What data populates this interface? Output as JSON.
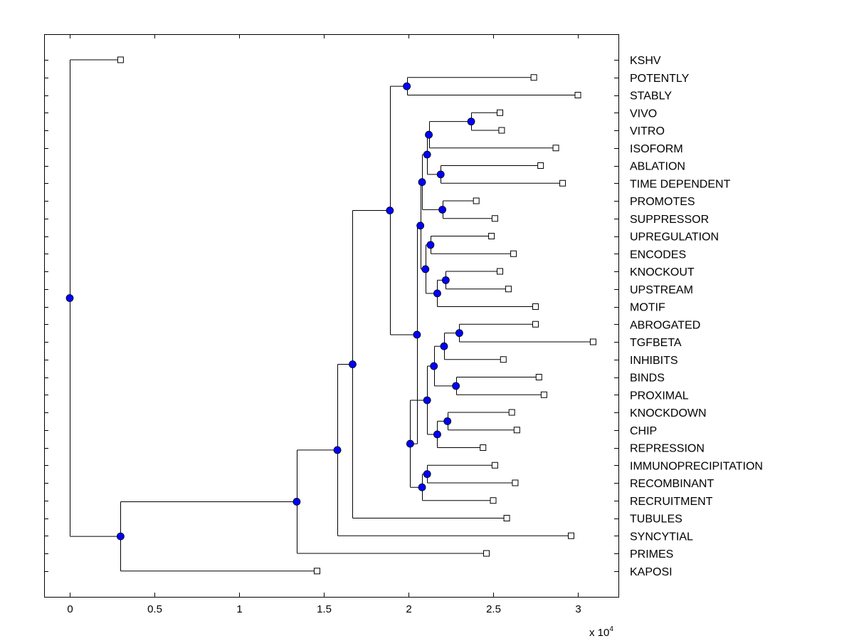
{
  "chart_data": {
    "type": "dendrogram",
    "title": "",
    "xlabel": "",
    "ylabel": "",
    "x_multiplier_label": {
      "base": "x 10",
      "exponent": "4"
    },
    "xlim": [
      -0.15,
      3.25
    ],
    "x_unit_scale": 10000,
    "xticks": [
      0,
      0.5,
      1,
      1.5,
      2,
      2.5,
      3
    ],
    "xtick_labels": [
      "0",
      "0.5",
      "1",
      "1.5",
      "2",
      "2.5",
      "3"
    ],
    "grid": false,
    "leaf_markers": "open-square",
    "node_marker_color": "#0000ff",
    "leaves": [
      {
        "label": "KSHV",
        "x": 0.3
      },
      {
        "label": "POTENTLY",
        "x": 2.74
      },
      {
        "label": "STABLY",
        "x": 3.0
      },
      {
        "label": "VIVO",
        "x": 2.54
      },
      {
        "label": "VITRO",
        "x": 2.55
      },
      {
        "label": "ISOFORM",
        "x": 2.87
      },
      {
        "label": "ABLATION",
        "x": 2.78
      },
      {
        "label": "TIME DEPENDENT",
        "x": 2.91
      },
      {
        "label": "PROMOTES",
        "x": 2.4
      },
      {
        "label": "SUPPRESSOR",
        "x": 2.51
      },
      {
        "label": "UPREGULATION",
        "x": 2.49
      },
      {
        "label": "ENCODES",
        "x": 2.62
      },
      {
        "label": "KNOCKOUT",
        "x": 2.54
      },
      {
        "label": "UPSTREAM",
        "x": 2.59
      },
      {
        "label": "MOTIF",
        "x": 2.75
      },
      {
        "label": "ABROGATED",
        "x": 2.75
      },
      {
        "label": "TGFBETA",
        "x": 3.09
      },
      {
        "label": "INHIBITS",
        "x": 2.56
      },
      {
        "label": "BINDS",
        "x": 2.77
      },
      {
        "label": "PROXIMAL",
        "x": 2.8
      },
      {
        "label": "KNOCKDOWN",
        "x": 2.61
      },
      {
        "label": "CHIP",
        "x": 2.64
      },
      {
        "label": "REPRESSION",
        "x": 2.44
      },
      {
        "label": "IMMUNOPRECIPITATION",
        "x": 2.51
      },
      {
        "label": "RECOMBINANT",
        "x": 2.63
      },
      {
        "label": "RECRUITMENT",
        "x": 2.5
      },
      {
        "label": "TUBULES",
        "x": 2.58
      },
      {
        "label": "SYNCYTIAL",
        "x": 2.96
      },
      {
        "label": "PRIMES",
        "x": 2.46
      },
      {
        "label": "KAPOSI",
        "x": 1.46
      }
    ],
    "merges": [
      {
        "id": "n_potently_stably",
        "x": 1.99,
        "children": [
          "POTENTLY",
          "STABLY"
        ]
      },
      {
        "id": "n_vivo_vitro",
        "x": 2.37,
        "children": [
          "VIVO",
          "VITRO"
        ]
      },
      {
        "id": "n_vv_isoform",
        "x": 2.12,
        "children": [
          "n_vivo_vitro",
          "ISOFORM"
        ]
      },
      {
        "id": "n_ablation_time",
        "x": 2.19,
        "children": [
          "ABLATION",
          "TIME DEPENDENT"
        ]
      },
      {
        "id": "n_iso_abl",
        "x": 2.11,
        "children": [
          "n_vv_isoform",
          "n_ablation_time"
        ]
      },
      {
        "id": "n_promotes_suppressor",
        "x": 2.2,
        "children": [
          "PROMOTES",
          "SUPPRESSOR"
        ]
      },
      {
        "id": "n_grp1",
        "x": 2.08,
        "children": [
          "n_iso_abl",
          "n_promotes_suppressor"
        ]
      },
      {
        "id": "n_upreg_encodes",
        "x": 2.13,
        "children": [
          "UPREGULATION",
          "ENCODES"
        ]
      },
      {
        "id": "n_knockout_upstream",
        "x": 2.22,
        "children": [
          "KNOCKOUT",
          "UPSTREAM"
        ]
      },
      {
        "id": "n_ko_motif",
        "x": 2.17,
        "children": [
          "n_knockout_upstream",
          "MOTIF"
        ]
      },
      {
        "id": "n_grp2",
        "x": 2.1,
        "children": [
          "n_upreg_encodes",
          "n_ko_motif"
        ]
      },
      {
        "id": "n_grp3",
        "x": 2.07,
        "children": [
          "n_grp1",
          "n_grp2"
        ]
      },
      {
        "id": "n_abrogated_tgfbeta",
        "x": 2.3,
        "children": [
          "ABROGATED",
          "TGFBETA"
        ]
      },
      {
        "id": "n_ab_inhibits",
        "x": 2.21,
        "children": [
          "n_abrogated_tgfbeta",
          "INHIBITS"
        ]
      },
      {
        "id": "n_binds_proximal",
        "x": 2.28,
        "children": [
          "BINDS",
          "PROXIMAL"
        ]
      },
      {
        "id": "n_grp4",
        "x": 2.15,
        "children": [
          "n_ab_inhibits",
          "n_binds_proximal"
        ]
      },
      {
        "id": "n_knockdown_chip",
        "x": 2.23,
        "children": [
          "KNOCKDOWN",
          "CHIP"
        ]
      },
      {
        "id": "n_kd_repression",
        "x": 2.17,
        "children": [
          "n_knockdown_chip",
          "REPRESSION"
        ]
      },
      {
        "id": "n_grp5",
        "x": 2.11,
        "children": [
          "n_grp4",
          "n_kd_repression"
        ]
      },
      {
        "id": "n_immuno_recomb",
        "x": 2.11,
        "children": [
          "IMMUNOPRECIPITATION",
          "RECOMBINANT"
        ]
      },
      {
        "id": "n_grp6",
        "x": 2.08,
        "children": [
          "n_immuno_recomb",
          "RECRUITMENT"
        ]
      },
      {
        "id": "n_grp7",
        "x": 2.01,
        "children": [
          "n_grp5",
          "n_grp6"
        ]
      },
      {
        "id": "n_grp8",
        "x": 2.05,
        "children": [
          "n_grp3",
          "n_grp7"
        ]
      },
      {
        "id": "n_grp9",
        "x": 1.89,
        "children": [
          "n_potently_stably",
          "n_grp8"
        ]
      },
      {
        "id": "n_grp10",
        "x": 1.67,
        "children": [
          "n_grp9",
          "TUBULES"
        ]
      },
      {
        "id": "n_grp11",
        "x": 1.58,
        "children": [
          "n_grp10",
          "SYNCYTIAL"
        ]
      },
      {
        "id": "n_grp12",
        "x": 1.34,
        "children": [
          "n_grp11",
          "PRIMES"
        ]
      },
      {
        "id": "n_grp13",
        "x": 0.3,
        "children": [
          "n_grp12",
          "KAPOSI"
        ]
      },
      {
        "id": "n_root",
        "x": 0.0,
        "children": [
          "KSHV",
          "n_grp13"
        ]
      }
    ]
  }
}
